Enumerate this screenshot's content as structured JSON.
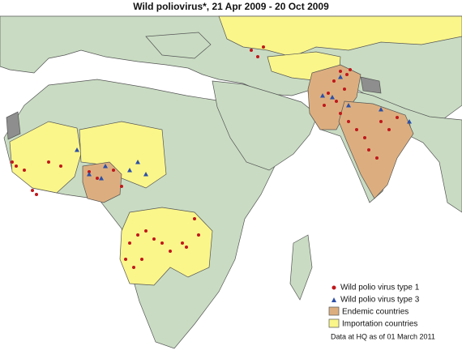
{
  "title": "Wild poliovirus*, 21 Apr 2009 - 20 Oct 2009",
  "legend": {
    "items": [
      {
        "label": "Wild polio virus type 1"
      },
      {
        "label": "Wild polio virus type 3"
      },
      {
        "label": "Endemic countries"
      },
      {
        "label": "Importation countries"
      }
    ],
    "note": "Data at HQ as of 01 March 2011"
  }
}
